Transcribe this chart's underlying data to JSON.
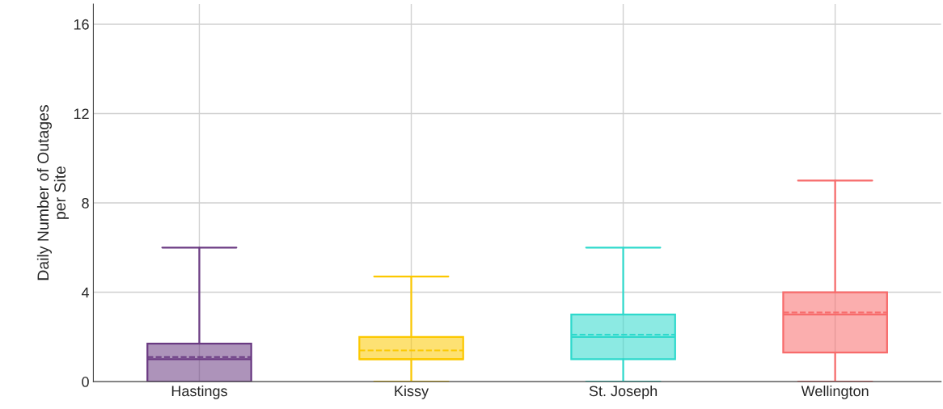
{
  "chart_data": {
    "type": "box",
    "ylabel": "Daily Number of Outages\nper Site",
    "categories": [
      "Hastings",
      "Kissy",
      "St. Joseph",
      "Wellington"
    ],
    "boxes": [
      {
        "low": 0,
        "q1": 0,
        "median": 1.0,
        "q3": 1.7,
        "high": 6,
        "mean": 1.1
      },
      {
        "low": 0,
        "q1": 1.0,
        "median": 1.0,
        "q3": 2.0,
        "high": 4.7,
        "mean": 1.4
      },
      {
        "low": 0,
        "q1": 1.0,
        "median": 2.0,
        "q3": 3.0,
        "high": 6,
        "mean": 2.1
      },
      {
        "low": 0,
        "q1": 1.3,
        "median": 3.0,
        "q3": 4.0,
        "high": 9,
        "mean": 3.1
      }
    ],
    "colors": [
      "#6a3a82",
      "#fcc800",
      "#2ed9cc",
      "#f76b6b"
    ],
    "ylim": [
      0,
      16.9
    ],
    "yticks": [
      0,
      4,
      8,
      12,
      16
    ],
    "grid": true
  }
}
